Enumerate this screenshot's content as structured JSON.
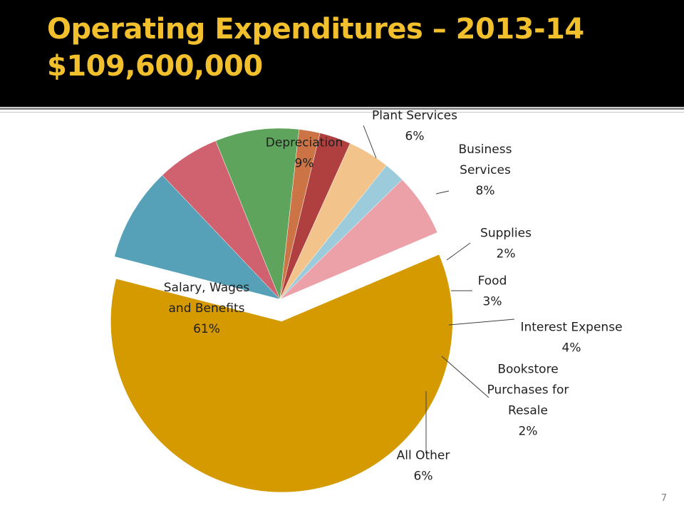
{
  "slide": {
    "title_line1": "Operating Expenditures – 2013-14",
    "title_line2": "$109,600,000",
    "slide_number": "7",
    "colors": {
      "title_bg": "#000000",
      "title_text": "#F2C02D"
    }
  },
  "chart_data": {
    "type": "pie",
    "title": "Operating Expenditures – 2013-14 $109,600,000",
    "unit": "%",
    "slices": [
      {
        "name": "Salary, Wages and Benefits",
        "value": 61,
        "label": "61%",
        "color": "#D49A00",
        "exploded": true
      },
      {
        "name": "Depreciation",
        "value": 9,
        "label": "9%",
        "color": "#56A1B8",
        "exploded": false
      },
      {
        "name": "Plant Services",
        "value": 6,
        "label": "6%",
        "color": "#CF626E",
        "exploded": false
      },
      {
        "name": "Business Services",
        "value": 8,
        "label": "8%",
        "color": "#5EA45D",
        "exploded": false
      },
      {
        "name": "Supplies",
        "value": 2,
        "label": "2%",
        "color": "#CC7445",
        "exploded": false
      },
      {
        "name": "Food",
        "value": 3,
        "label": "3%",
        "color": "#B0403F",
        "exploded": false
      },
      {
        "name": "Interest Expense",
        "value": 4,
        "label": "4%",
        "color": "#F2C38A",
        "exploded": false
      },
      {
        "name": "Bookstore Purchases for Resale",
        "value": 2,
        "label": "2%",
        "color": "#9CCCDC",
        "exploded": false
      },
      {
        "name": "All Other",
        "value": 6,
        "label": "6%",
        "color": "#ECA0A8",
        "exploded": false
      }
    ]
  }
}
